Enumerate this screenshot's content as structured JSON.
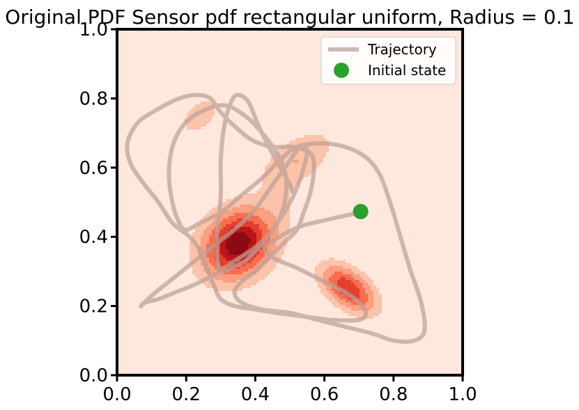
{
  "chart_data": {
    "type": "contour",
    "title": "Original PDF Sensor pdf rectangular uniform, Radius = 0.1",
    "xlabel": "",
    "ylabel": "",
    "xlim": [
      0.0,
      1.0
    ],
    "ylim": [
      0.0,
      1.0
    ],
    "x_ticks": [
      "0.0",
      "0.2",
      "0.4",
      "0.6",
      "0.8",
      "1.0"
    ],
    "y_ticks": [
      "0.0",
      "0.2",
      "0.4",
      "0.6",
      "0.8",
      "1.0"
    ],
    "grid": false,
    "legend": {
      "placement": "upper right",
      "entries": [
        {
          "label": "Trajectory",
          "marker": "line",
          "color": "#bc9f95"
        },
        {
          "label": "Initial state",
          "marker": "circle",
          "color": "#2ca02c"
        }
      ]
    },
    "colors": {
      "background": "#fee8de",
      "contour_levels": [
        "#fcc3ab",
        "#fc9e80",
        "#f66d4f",
        "#e43e2f",
        "#bc141a",
        "#8a0b13"
      ]
    },
    "density_peaks": [
      {
        "x": 0.35,
        "y": 0.38,
        "sx": 0.062,
        "sy": 0.05,
        "angle_deg": 42,
        "weight": 1.0
      },
      {
        "x": 0.67,
        "y": 0.25,
        "sx": 0.05,
        "sy": 0.028,
        "angle_deg": -38,
        "weight": 0.62
      },
      {
        "x": 0.52,
        "y": 0.62,
        "sx": 0.07,
        "sy": 0.036,
        "angle_deg": 35,
        "weight": 0.14
      },
      {
        "x": 0.24,
        "y": 0.75,
        "sx": 0.04,
        "sy": 0.025,
        "angle_deg": 40,
        "weight": 0.1
      },
      {
        "x": 0.47,
        "y": 0.5,
        "sx": 0.03,
        "sy": 0.05,
        "angle_deg": 0,
        "weight": 0.06
      }
    ],
    "series": [
      {
        "name": "Trajectory",
        "type": "line",
        "points": [
          [
            0.7,
            0.47
          ],
          [
            0.61,
            0.45
          ],
          [
            0.53,
            0.43
          ],
          [
            0.47,
            0.4
          ],
          [
            0.43,
            0.37
          ],
          [
            0.45,
            0.34
          ],
          [
            0.52,
            0.31
          ],
          [
            0.6,
            0.27
          ],
          [
            0.66,
            0.24
          ],
          [
            0.7,
            0.21
          ],
          [
            0.72,
            0.18
          ],
          [
            0.7,
            0.16
          ],
          [
            0.62,
            0.16
          ],
          [
            0.54,
            0.17
          ],
          [
            0.46,
            0.18
          ],
          [
            0.4,
            0.19
          ],
          [
            0.34,
            0.2
          ],
          [
            0.3,
            0.22
          ],
          [
            0.28,
            0.26
          ],
          [
            0.26,
            0.31
          ],
          [
            0.24,
            0.36
          ],
          [
            0.21,
            0.4
          ],
          [
            0.16,
            0.44
          ],
          [
            0.12,
            0.5
          ],
          [
            0.08,
            0.55
          ],
          [
            0.04,
            0.61
          ],
          [
            0.03,
            0.67
          ],
          [
            0.06,
            0.73
          ],
          [
            0.12,
            0.77
          ],
          [
            0.18,
            0.8
          ],
          [
            0.23,
            0.81
          ],
          [
            0.27,
            0.8
          ],
          [
            0.3,
            0.76
          ],
          [
            0.34,
            0.72
          ],
          [
            0.39,
            0.68
          ],
          [
            0.45,
            0.66
          ],
          [
            0.51,
            0.66
          ],
          [
            0.56,
            0.64
          ],
          [
            0.57,
            0.6
          ],
          [
            0.56,
            0.53
          ],
          [
            0.54,
            0.47
          ],
          [
            0.52,
            0.42
          ],
          [
            0.48,
            0.38
          ],
          [
            0.44,
            0.34
          ],
          [
            0.4,
            0.3
          ],
          [
            0.36,
            0.27
          ],
          [
            0.34,
            0.24
          ],
          [
            0.36,
            0.21
          ],
          [
            0.42,
            0.19
          ],
          [
            0.5,
            0.18
          ],
          [
            0.58,
            0.16
          ],
          [
            0.66,
            0.14
          ],
          [
            0.74,
            0.12
          ],
          [
            0.8,
            0.1
          ],
          [
            0.86,
            0.1
          ],
          [
            0.89,
            0.13
          ],
          [
            0.88,
            0.21
          ],
          [
            0.85,
            0.3
          ],
          [
            0.82,
            0.4
          ],
          [
            0.79,
            0.5
          ],
          [
            0.76,
            0.58
          ],
          [
            0.72,
            0.63
          ],
          [
            0.66,
            0.66
          ],
          [
            0.59,
            0.67
          ],
          [
            0.52,
            0.66
          ],
          [
            0.47,
            0.62
          ],
          [
            0.42,
            0.57
          ],
          [
            0.36,
            0.52
          ],
          [
            0.3,
            0.47
          ],
          [
            0.24,
            0.44
          ],
          [
            0.2,
            0.42
          ],
          [
            0.18,
            0.44
          ],
          [
            0.16,
            0.5
          ],
          [
            0.15,
            0.58
          ],
          [
            0.16,
            0.66
          ],
          [
            0.19,
            0.72
          ],
          [
            0.24,
            0.76
          ],
          [
            0.31,
            0.78
          ],
          [
            0.37,
            0.75
          ],
          [
            0.42,
            0.7
          ],
          [
            0.47,
            0.63
          ],
          [
            0.49,
            0.56
          ],
          [
            0.48,
            0.48
          ],
          [
            0.45,
            0.42
          ],
          [
            0.4,
            0.37
          ],
          [
            0.34,
            0.33
          ],
          [
            0.28,
            0.29
          ],
          [
            0.22,
            0.26
          ],
          [
            0.17,
            0.24
          ],
          [
            0.12,
            0.22
          ],
          [
            0.08,
            0.21
          ],
          [
            0.07,
            0.2
          ],
          [
            0.1,
            0.23
          ],
          [
            0.15,
            0.27
          ],
          [
            0.2,
            0.31
          ],
          [
            0.25,
            0.35
          ],
          [
            0.3,
            0.39
          ],
          [
            0.35,
            0.43
          ],
          [
            0.4,
            0.48
          ],
          [
            0.45,
            0.55
          ],
          [
            0.5,
            0.62
          ],
          [
            0.53,
            0.66
          ],
          [
            0.55,
            0.65
          ],
          [
            0.54,
            0.6
          ],
          [
            0.52,
            0.54
          ],
          [
            0.49,
            0.48
          ],
          [
            0.45,
            0.42
          ],
          [
            0.41,
            0.37
          ],
          [
            0.37,
            0.33
          ],
          [
            0.33,
            0.31
          ],
          [
            0.3,
            0.3
          ],
          [
            0.29,
            0.34
          ],
          [
            0.29,
            0.42
          ],
          [
            0.3,
            0.52
          ],
          [
            0.3,
            0.62
          ],
          [
            0.31,
            0.72
          ],
          [
            0.33,
            0.79
          ],
          [
            0.35,
            0.81
          ],
          [
            0.38,
            0.79
          ],
          [
            0.41,
            0.72
          ],
          [
            0.45,
            0.64
          ],
          [
            0.49,
            0.57
          ],
          [
            0.51,
            0.53
          ]
        ]
      },
      {
        "name": "Initial state",
        "type": "scatter",
        "points": [
          [
            0.705,
            0.473
          ]
        ]
      }
    ]
  }
}
